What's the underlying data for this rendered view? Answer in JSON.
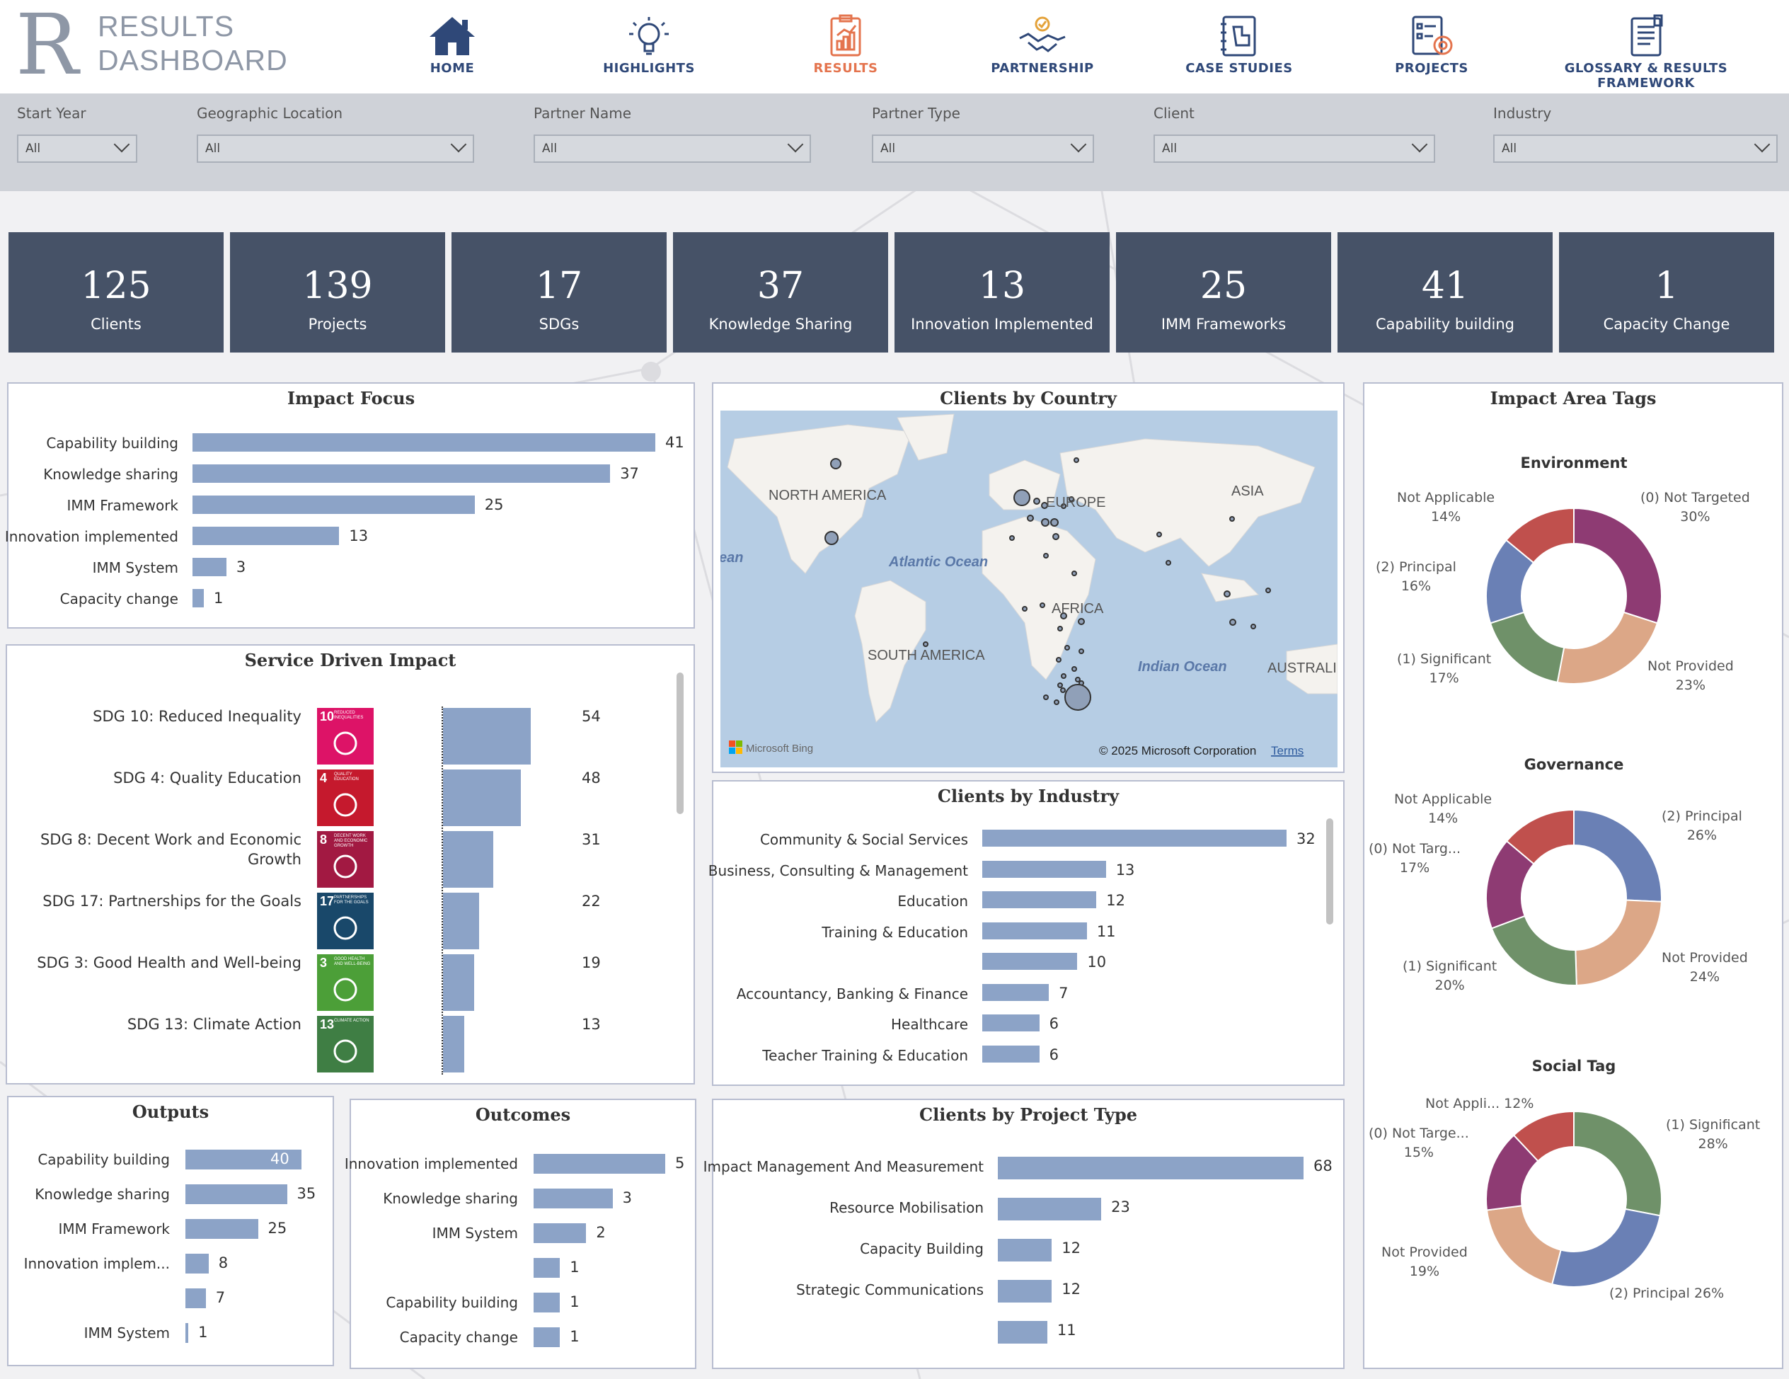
{
  "header": {
    "logo_letter": "R",
    "logo_line1": "RESULTS",
    "logo_line2": "DASHBOARD",
    "nav": [
      {
        "label": "HOME",
        "icon": "home-icon"
      },
      {
        "label": "HIGHLIGHTS",
        "icon": "lightbulb-icon"
      },
      {
        "label": "RESULTS",
        "icon": "clipboard-chart-icon",
        "active": true
      },
      {
        "label": "PARTNERSHIP",
        "icon": "handshake-icon"
      },
      {
        "label": "CASE STUDIES",
        "icon": "notebook-icon"
      },
      {
        "label": "PROJECTS",
        "icon": "checklist-target-icon"
      },
      {
        "label": "GLOSSARY & RESULTS FRAMEWORK",
        "icon": "document-icon"
      }
    ]
  },
  "filters": [
    {
      "label": "Start Year",
      "value": "All"
    },
    {
      "label": "Geographic Location",
      "value": "All"
    },
    {
      "label": "Partner Name",
      "value": "All"
    },
    {
      "label": "Partner Type",
      "value": "All"
    },
    {
      "label": "Client",
      "value": "All"
    },
    {
      "label": "Industry",
      "value": "All"
    }
  ],
  "kpis": [
    {
      "value": "125",
      "label": "Clients"
    },
    {
      "value": "139",
      "label": "Projects"
    },
    {
      "value": "17",
      "label": "SDGs"
    },
    {
      "value": "37",
      "label": "Knowledge Sharing"
    },
    {
      "value": "13",
      "label": "Innovation Implemented"
    },
    {
      "value": "25",
      "label": "IMM Frameworks"
    },
    {
      "value": "41",
      "label": "Capability building"
    },
    {
      "value": "1",
      "label": "Capacity Change"
    }
  ],
  "impact_focus": {
    "title": "Impact Focus",
    "rows": [
      {
        "label": "Capability building",
        "value": 41
      },
      {
        "label": "Knowledge sharing",
        "value": 37
      },
      {
        "label": "IMM Framework",
        "value": 25
      },
      {
        "label": "Innovation implemented",
        "value": 13
      },
      {
        "label": "IMM System",
        "value": 3
      },
      {
        "label": "Capacity change",
        "value": 1
      }
    ]
  },
  "service_impact": {
    "title": "Service Driven Impact",
    "rows": [
      {
        "label": "SDG 10: Reduced Inequality",
        "value": 54,
        "num": "10",
        "tag": "REDUCED INEQUALITIES",
        "color": "#dd1367",
        "icon": "equality-icon"
      },
      {
        "label": "SDG 4: Quality Education",
        "value": 48,
        "num": "4",
        "tag": "QUALITY EDUCATION",
        "color": "#c5192d",
        "icon": "book-icon"
      },
      {
        "label": "SDG 8: Decent Work and Economic Growth",
        "value": 31,
        "num": "8",
        "tag": "DECENT WORK AND ECONOMIC GROWTH",
        "color": "#a21942",
        "icon": "growth-chart-icon"
      },
      {
        "label": "SDG 17: Partnerships for the Goals",
        "value": 22,
        "num": "17",
        "tag": "PARTNERSHIPS FOR THE GOALS",
        "color": "#19486a",
        "icon": "rings-icon"
      },
      {
        "label": "SDG 3: Good Health and Well-being",
        "value": 19,
        "num": "3",
        "tag": "GOOD HEALTH AND WELL-BEING",
        "color": "#4c9f38",
        "icon": "heartbeat-icon"
      },
      {
        "label": "SDG 13: Climate Action",
        "value": 13,
        "num": "13",
        "tag": "CLIMATE ACTION",
        "color": "#3f7e44",
        "icon": "eye-globe-icon"
      }
    ]
  },
  "outputs": {
    "title": "Outputs",
    "rows": [
      {
        "label": "Capability building",
        "value": 40
      },
      {
        "label": "Knowledge sharing",
        "value": 35
      },
      {
        "label": "IMM Framework",
        "value": 25
      },
      {
        "label": "Innovation implem...",
        "value": 8
      },
      {
        "label": "",
        "value": 7
      },
      {
        "label": "IMM System",
        "value": 1
      }
    ]
  },
  "outcomes": {
    "title": "Outcomes",
    "rows": [
      {
        "label": "Innovation implemented",
        "value": 5
      },
      {
        "label": "Knowledge sharing",
        "value": 3
      },
      {
        "label": "IMM System",
        "value": 2
      },
      {
        "label": "",
        "value": 1
      },
      {
        "label": "Capability building",
        "value": 1
      },
      {
        "label": "Capacity change",
        "value": 1
      }
    ]
  },
  "map": {
    "title": "Clients by Country",
    "labels": {
      "north_america": "NORTH AMERICA",
      "europe": "EUROPE",
      "asia": "ASIA",
      "africa": "AFRICA",
      "south_america": "SOUTH AMERICA",
      "atlantic": "Atlantic Ocean",
      "indian": "Indian Ocean",
      "australia": "AUSTRALI",
      "ocean_left": "ean"
    },
    "bing": "Microsoft Bing",
    "copyright": "© 2025 Microsoft Corporation",
    "terms": "Terms"
  },
  "industry": {
    "title": "Clients by Industry",
    "rows": [
      {
        "label": "Community & Social Services",
        "value": 32
      },
      {
        "label": "Business, Consulting & Management",
        "value": 13
      },
      {
        "label": "Education",
        "value": 12
      },
      {
        "label": "Training & Education",
        "value": 11
      },
      {
        "label": "",
        "value": 10
      },
      {
        "label": "Accountancy, Banking & Finance",
        "value": 7
      },
      {
        "label": "Healthcare",
        "value": 6
      },
      {
        "label": "Teacher Training & Education",
        "value": 6
      }
    ]
  },
  "project_type": {
    "title": "Clients by Project Type",
    "rows": [
      {
        "label": "Impact Management And Measurement",
        "value": 68
      },
      {
        "label": "Resource Mobilisation",
        "value": 23
      },
      {
        "label": "Capacity Building",
        "value": 12
      },
      {
        "label": "Strategic Communications",
        "value": 12
      },
      {
        "label": "",
        "value": 11
      }
    ]
  },
  "impact_tags": {
    "title": "Impact Area Tags",
    "colors": {
      "not_targeted": "#8e3b73",
      "not_provided": "#dca787",
      "significant": "#6f9169",
      "principal": "#6a80b5",
      "not_applicable": "#c0504d"
    },
    "donuts": [
      {
        "title": "Environment",
        "slices": [
          {
            "name": "(0) Not Targeted",
            "pct": 30,
            "color": "#8e3b73"
          },
          {
            "name": "Not Provided",
            "pct": 23,
            "color": "#dca787"
          },
          {
            "name": "(1) Significant",
            "pct": 17,
            "color": "#6f9169"
          },
          {
            "name": "(2) Principal",
            "pct": 16,
            "color": "#6a80b5"
          },
          {
            "name": "Not Applicable",
            "pct": 14,
            "color": "#c0504d"
          }
        ],
        "labels": [
          {
            "t1": "(0) Not Targeted",
            "t2": "30%"
          },
          {
            "t1": "Not Provided",
            "t2": "23%"
          },
          {
            "t1": "(1) Significant",
            "t2": "17%"
          },
          {
            "t1": "(2) Principal",
            "t2": "16%"
          },
          {
            "t1": "Not Applicable",
            "t2": "14%"
          }
        ]
      },
      {
        "title": "Governance",
        "slices": [
          {
            "name": "(2) Principal",
            "pct": 26,
            "color": "#6a80b5"
          },
          {
            "name": "Not Provided",
            "pct": 24,
            "color": "#dca787"
          },
          {
            "name": "(1) Significant",
            "pct": 20,
            "color": "#6f9169"
          },
          {
            "name": "(0) Not Targ...",
            "pct": 17,
            "color": "#8e3b73"
          },
          {
            "name": "Not Applicable",
            "pct": 14,
            "color": "#c0504d"
          }
        ],
        "labels": [
          {
            "t1": "(2) Principal",
            "t2": "26%"
          },
          {
            "t1": "Not Provided",
            "t2": "24%"
          },
          {
            "t1": "(1) Significant",
            "t2": "20%"
          },
          {
            "t1": "(0) Not Targ...",
            "t2": "17%"
          },
          {
            "t1": "Not Applicable",
            "t2": "14%"
          }
        ]
      },
      {
        "title": "Social Tag",
        "slices": [
          {
            "name": "(1) Significant",
            "pct": 28,
            "color": "#6f9169"
          },
          {
            "name": "(2) Principal",
            "pct": 26,
            "color": "#6a80b5"
          },
          {
            "name": "Not Provided",
            "pct": 19,
            "color": "#dca787"
          },
          {
            "name": "(0) Not Targe...",
            "pct": 15,
            "color": "#8e3b73"
          },
          {
            "name": "Not Appli...",
            "pct": 12,
            "color": "#c0504d"
          }
        ],
        "labels": [
          {
            "t1": "(1) Significant",
            "t2": "28%"
          },
          {
            "t1": "(2) Principal 26%",
            "t2": ""
          },
          {
            "t1": "Not Provided",
            "t2": "19%"
          },
          {
            "t1": "(0) Not Targe...",
            "t2": "15%"
          },
          {
            "t1": "Not Appli... 12%",
            "t2": ""
          }
        ]
      }
    ]
  }
}
